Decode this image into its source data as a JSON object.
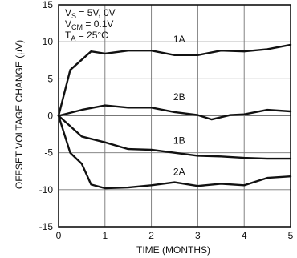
{
  "chart_data": {
    "type": "line",
    "title": "",
    "xlabel": "TIME (MONTHS)",
    "ylabel": "OFFSET VOLTAGE CHANGE (µV)",
    "xlim": [
      0,
      5
    ],
    "ylim": [
      -15,
      15
    ],
    "grid": true,
    "xticks": [
      "0",
      "1",
      "2",
      "3",
      "4",
      "5"
    ],
    "yticks": [
      "15",
      "10",
      "5",
      "0",
      "-5",
      "-10",
      "-15"
    ],
    "conditions": [
      {
        "sym": "V",
        "sub": "S",
        "rest": "= 5V, 0V"
      },
      {
        "sym": "V",
        "sub": "CM",
        "rest": "= 0.1V"
      },
      {
        "sym": "T",
        "sub": "A",
        "rest": "= 25°C"
      }
    ],
    "series": [
      {
        "name": "1A",
        "x": [
          0,
          0.25,
          0.7,
          1.0,
          1.5,
          2.0,
          2.5,
          3.0,
          3.5,
          4.0,
          4.5,
          5.0
        ],
        "values": [
          0,
          6.2,
          8.7,
          8.4,
          8.8,
          8.8,
          8.2,
          8.2,
          8.8,
          8.7,
          9.0,
          9.6
        ]
      },
      {
        "name": "2B",
        "x": [
          0,
          0.5,
          1.0,
          1.5,
          2.0,
          2.5,
          3.0,
          3.3,
          3.7,
          4.0,
          4.5,
          5.0
        ],
        "values": [
          0,
          0.8,
          1.4,
          1.1,
          1.1,
          0.5,
          0.1,
          -0.5,
          0.1,
          0.2,
          0.8,
          0.6
        ]
      },
      {
        "name": "1B",
        "x": [
          0,
          0.5,
          1.0,
          1.5,
          2.0,
          2.5,
          3.0,
          3.5,
          4.0,
          4.5,
          5.0
        ],
        "values": [
          0,
          -2.8,
          -3.6,
          -4.5,
          -4.6,
          -5.0,
          -5.4,
          -5.5,
          -5.7,
          -5.8,
          -5.8
        ]
      },
      {
        "name": "2A",
        "x": [
          0,
          0.25,
          0.5,
          0.7,
          1.0,
          1.5,
          2.0,
          2.5,
          3.0,
          3.5,
          4.0,
          4.5,
          5.0
        ],
        "values": [
          0,
          -5.0,
          -6.5,
          -9.3,
          -9.8,
          -9.7,
          -9.4,
          -9.0,
          -9.5,
          -9.2,
          -9.4,
          -8.4,
          -8.2
        ]
      }
    ],
    "labels": [
      {
        "text": "1A",
        "x": 2.6,
        "y": 9.9
      },
      {
        "text": "2B",
        "x": 2.6,
        "y": 2.1
      },
      {
        "text": "1B",
        "x": 2.6,
        "y": -3.8
      },
      {
        "text": "2A",
        "x": 2.6,
        "y": -8.0
      }
    ]
  }
}
